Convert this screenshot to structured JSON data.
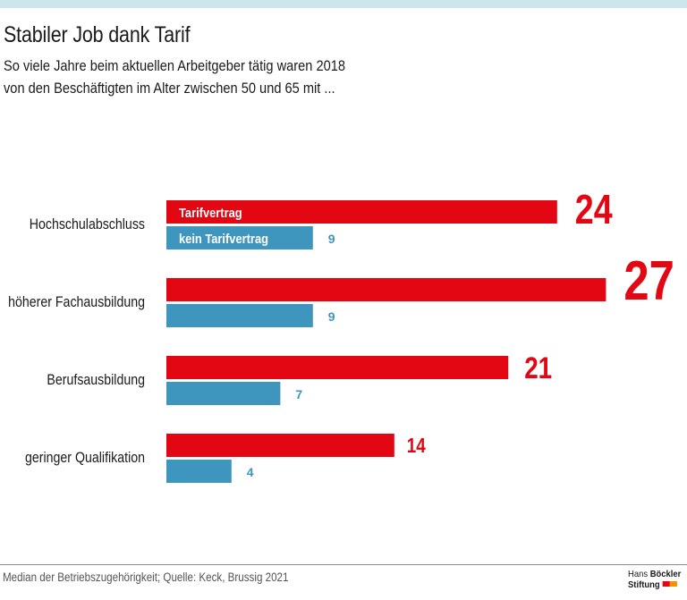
{
  "header": {
    "title": "Stabiler Job dank Tarif",
    "subtitle_line1": "So viele Jahre beim aktuellen Arbeitgeber tätig waren 2018",
    "subtitle_line2": "von den Beschäftigten im Alter zwischen 50 und 65 mit ..."
  },
  "footer": {
    "source": "Median der Betriebszugehörigkeit; Quelle: Keck, Brussig 2021",
    "logo_line1_a": "Hans ",
    "logo_line1_b": "Böckler",
    "logo_line2": "Stiftung"
  },
  "colors": {
    "tarif": "#e30613",
    "kein_tarif": "#3e96bf",
    "logo_red": "#e30613",
    "logo_orange": "#f39200"
  },
  "chart_data": {
    "type": "bar",
    "orientation": "horizontal",
    "title": "Stabiler Job dank Tarif",
    "subtitle": "So viele Jahre beim aktuellen Arbeitgeber tätig waren 2018 von den Beschäftigten im Alter zwischen 50 und 65 mit ...",
    "xlabel": "",
    "ylabel": "",
    "grid": false,
    "categories": [
      "Hochschulabschluss",
      "höherer Fachausbildung",
      "Berufsausbildung",
      "geringer Qualifikation"
    ],
    "series": [
      {
        "name": "Tarifvertrag",
        "values": [
          24,
          27,
          21,
          14
        ]
      },
      {
        "name": "kein Tarifvertrag",
        "values": [
          9,
          9,
          7,
          4
        ]
      }
    ],
    "xlim": [
      0,
      27
    ],
    "legend": "inside-first-bars",
    "note": "Median der Betriebszugehörigkeit; Quelle: Keck, Brussig 2021"
  }
}
